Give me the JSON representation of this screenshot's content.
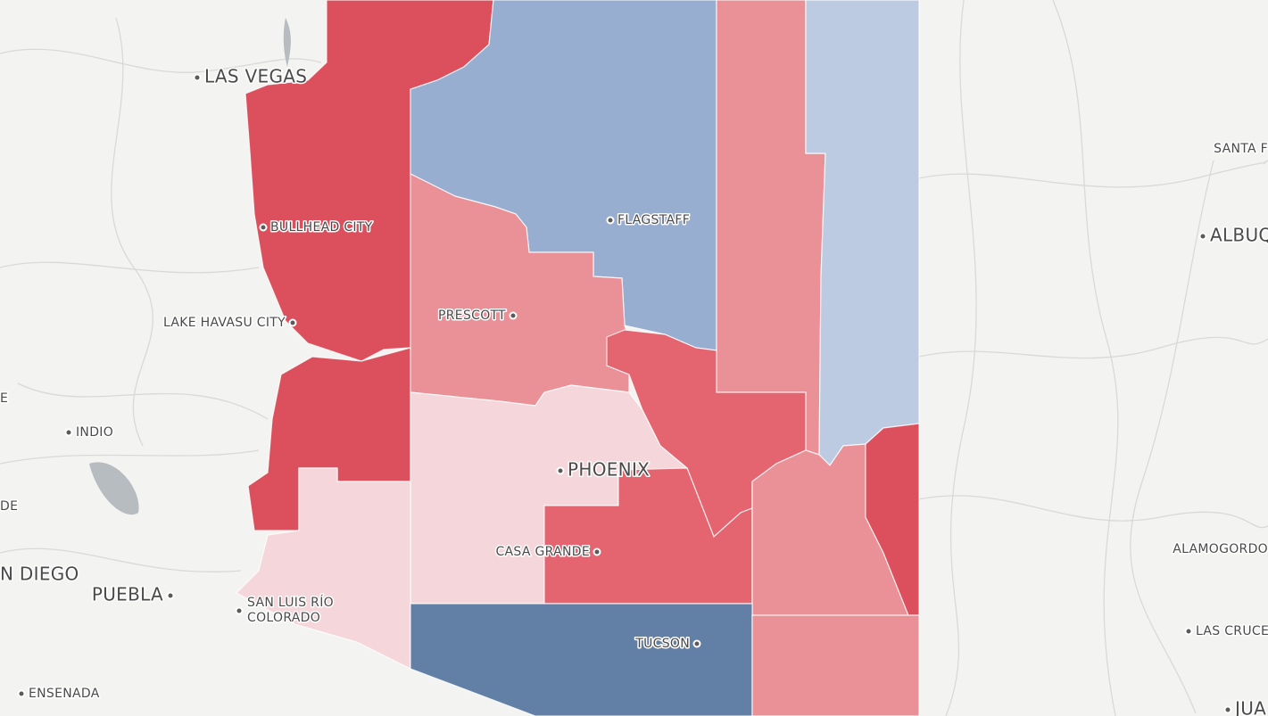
{
  "map": {
    "labels": [
      {
        "text": "LAS VEGAS"
      },
      {
        "text": "BULLHEAD CITY"
      },
      {
        "text": "LAKE HAVASU CITY"
      },
      {
        "text": "FLAGSTAFF"
      },
      {
        "text": "PRESCOTT"
      },
      {
        "text": "PHOENIX"
      },
      {
        "text": "CASA GRANDE"
      },
      {
        "text": "TUCSON"
      },
      {
        "text": "INDIO"
      },
      {
        "text": "N DIEGO"
      },
      {
        "text": "PUEBLA"
      },
      {
        "text": "SAN LUIS RÍO"
      },
      {
        "text": "COLORADO"
      },
      {
        "text": "ENSENADA"
      },
      {
        "text": "SANTA F"
      },
      {
        "text": "ALBUQ"
      },
      {
        "text": "ALAMOGORDO"
      },
      {
        "text": "LAS CRUCE"
      },
      {
        "text": "JUA"
      },
      {
        "text": "DE"
      },
      {
        "text": "E"
      }
    ]
  }
}
